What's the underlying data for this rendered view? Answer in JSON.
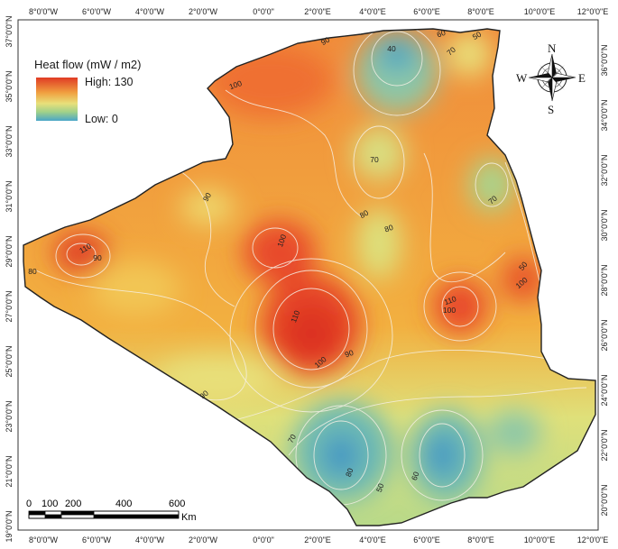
{
  "legend": {
    "title": "Heat flow (mW / m2)",
    "high_label": "High: 130",
    "low_label": "Low: 0",
    "colors": {
      "high": "#e03b24",
      "mid_high": "#f0a040",
      "mid": "#e8e07a",
      "mid_low": "#9fd08a",
      "low": "#4aa6c8"
    }
  },
  "compass": {
    "n": "N",
    "s": "S",
    "e": "E",
    "w": "W"
  },
  "scalebar": {
    "labels": [
      "0",
      "100",
      "200",
      "400",
      "600"
    ],
    "unit": "Km"
  },
  "axes": {
    "top": [
      "8°0'0\"W",
      "6°0'0\"W",
      "4°0'0\"W",
      "2°0'0\"W",
      "0°0'0\"",
      "2°0'0\"E",
      "4°0'0\"E",
      "6°0'0\"E",
      "8°0'0\"E",
      "10°0'0\"E",
      "12°0'0\"E"
    ],
    "bottom": [
      "8°0'0\"W",
      "6°0'0\"W",
      "4°0'0\"W",
      "2°0'0\"W",
      "0°0'0\"",
      "2°0'0\"E",
      "4°0'0\"E",
      "6°0'0\"E",
      "8°0'0\"E",
      "10°0'0\"E",
      "12°0'0\"E"
    ],
    "left": [
      "37°0'0\"N",
      "35°0'0\"N",
      "33°0'0\"N",
      "31°0'0\"N",
      "29°0'0\"N",
      "27°0'0\"N",
      "25°0'0\"N",
      "23°0'0\"N",
      "21°0'0\"N",
      "19°0'0\"N"
    ],
    "right": [
      "36°0'0\"N",
      "34°0'0\"N",
      "32°0'0\"N",
      "30°0'0\"N",
      "28°0'0\"N",
      "26°0'0\"N",
      "24°0'0\"N",
      "22°0'0\"N",
      "20°0'0\"N"
    ]
  },
  "contour_labels": [
    "90",
    "40",
    "70",
    "60",
    "50",
    "100",
    "70",
    "90",
    "70",
    "80",
    "80",
    "100",
    "110",
    "90",
    "80",
    "110",
    "90",
    "100",
    "100",
    "110",
    "100",
    "90",
    "70",
    "80",
    "50",
    "60",
    "50"
  ]
}
